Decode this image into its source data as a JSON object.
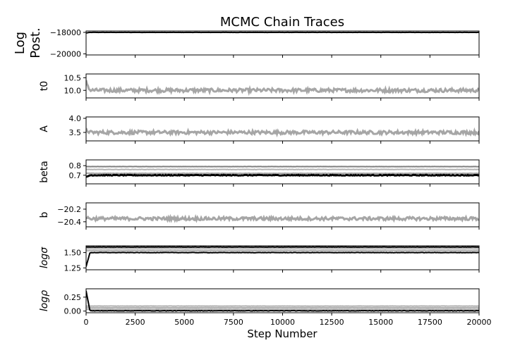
{
  "chart_data": {
    "type": "line",
    "title": "MCMC Chain Traces",
    "xlabel": "Step Number",
    "xlim": [
      0,
      20000
    ],
    "xticks": [
      0,
      2500,
      5000,
      7500,
      10000,
      12500,
      15000,
      17500,
      20000
    ],
    "xtick_labels": [
      "0",
      "2500",
      "5000",
      "7500",
      "10000",
      "12500",
      "15000",
      "17500",
      "20000"
    ],
    "grid": false,
    "line_color": "#000000",
    "panels": [
      {
        "ylabel": "Log\nPost.",
        "ylabel_style": "normal",
        "ylim": [
          -20100,
          -17870
        ],
        "yticks": [
          -20000,
          -18000
        ],
        "ytick_labels": [
          "−20000",
          "−18000"
        ],
        "traces": [
          {
            "level": -18000,
            "spread": 8,
            "start": -18050,
            "alpha": 1.0
          }
        ]
      },
      {
        "ylabel": "t0",
        "ylabel_style": "normal",
        "ylim": [
          9.7,
          10.65
        ],
        "yticks": [
          10.0,
          10.5
        ],
        "ytick_labels": [
          "10.0",
          "10.5"
        ],
        "traces": [
          {
            "level": 10.0,
            "spread": 0.07,
            "start": 10.35,
            "alpha": 0.35
          }
        ]
      },
      {
        "ylabel": "A",
        "ylabel_style": "normal",
        "ylim": [
          3.2,
          4.05
        ],
        "yticks": [
          3.5,
          4.0
        ],
        "ytick_labels": [
          "3.5",
          "4.0"
        ],
        "traces": [
          {
            "level": 3.5,
            "spread": 0.06,
            "start": 3.6,
            "alpha": 0.35
          }
        ]
      },
      {
        "ylabel": "beta",
        "ylabel_style": "normal",
        "ylim": [
          0.61,
          0.86
        ],
        "yticks": [
          0.7,
          0.8
        ],
        "ytick_labels": [
          "0.7",
          "0.8"
        ],
        "traces": [
          {
            "level": 0.7,
            "spread": 0.004,
            "start": 0.68,
            "alpha": 1.0
          },
          {
            "level": 0.72,
            "spread": 0.002,
            "start": 0.72,
            "alpha": 0.35
          },
          {
            "level": 0.76,
            "spread": 0.002,
            "start": 0.76,
            "alpha": 0.3
          },
          {
            "level": 0.79,
            "spread": 0.001,
            "start": 0.79,
            "alpha": 0.5
          }
        ]
      },
      {
        "ylabel": "b",
        "ylabel_style": "normal",
        "ylim": [
          -20.48,
          -20.1
        ],
        "yticks": [
          -20.4,
          -20.2
        ],
        "ytick_labels": [
          "−20.4",
          "−20.2"
        ],
        "traces": [
          {
            "level": -20.35,
            "spread": 0.025,
            "start": -20.33,
            "alpha": 0.35
          }
        ]
      },
      {
        "ylabel": "logσ",
        "ylabel_style": "italic",
        "ylim": [
          1.22,
          1.61
        ],
        "yticks": [
          1.25,
          1.5
        ],
        "ytick_labels": [
          "1.25",
          "1.50"
        ],
        "traces": [
          {
            "level": 1.5,
            "spread": 0.003,
            "start": 1.27,
            "alpha": 1.0
          },
          {
            "level": 1.53,
            "spread": 0.002,
            "start": 1.53,
            "alpha": 0.3
          },
          {
            "level": 1.56,
            "spread": 0.002,
            "start": 1.56,
            "alpha": 0.3
          },
          {
            "level": 1.59,
            "spread": 0.002,
            "start": 1.59,
            "alpha": 1.0
          }
        ]
      },
      {
        "ylabel": "logρ",
        "ylabel_style": "italic",
        "ylim": [
          -0.03,
          0.4
        ],
        "yticks": [
          0.0,
          0.25
        ],
        "ytick_labels": [
          "0.00",
          "0.25"
        ],
        "traces": [
          {
            "level": 0.005,
            "spread": 0.004,
            "start": 0.36,
            "alpha": 1.0
          },
          {
            "level": 0.03,
            "spread": 0.002,
            "start": 0.03,
            "alpha": 0.3
          },
          {
            "level": 0.06,
            "spread": 0.002,
            "start": 0.06,
            "alpha": 0.3
          },
          {
            "level": 0.09,
            "spread": 0.002,
            "start": 0.09,
            "alpha": 0.3
          }
        ]
      }
    ]
  }
}
